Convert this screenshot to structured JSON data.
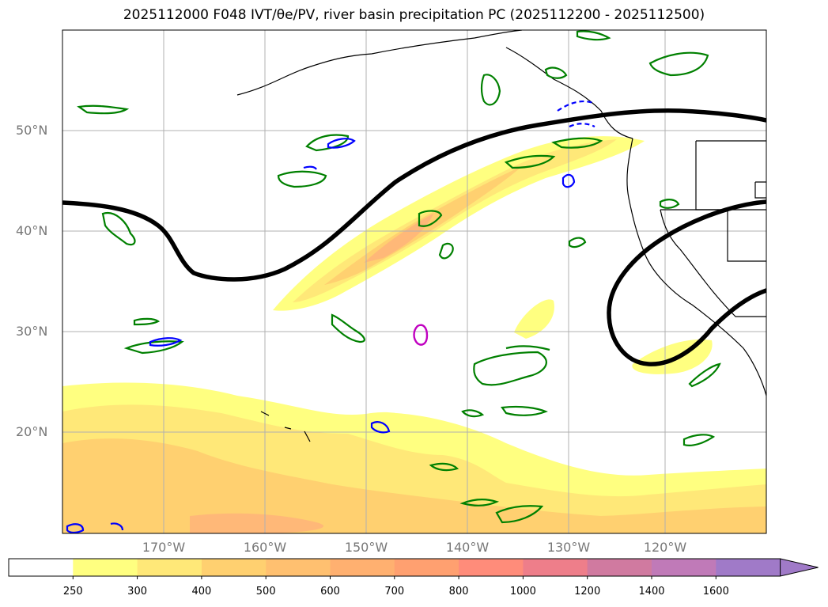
{
  "title": "2025112000 F048 IVT/θe/PV, river basin precipitation PC (2025112200 - 2025112500)",
  "latitude_labels": [
    "50°N",
    "40°N",
    "30°N",
    "20°N"
  ],
  "longitude_labels": [
    "170°W",
    "160°W",
    "150°W",
    "140°W",
    "130°W",
    "120°W"
  ],
  "colorbar": {
    "ticks": [
      "250",
      "300",
      "400",
      "500",
      "600",
      "700",
      "800",
      "1000",
      "1200",
      "1400",
      "1600"
    ],
    "colors": [
      "#ffffff",
      "#ffff80",
      "#ffe878",
      "#ffd070",
      "#ffc070",
      "#ffb070",
      "#ffa070",
      "#ff8c7a",
      "#ee7e8a",
      "#d07aa0",
      "#c07ab8",
      "#a07ac8"
    ],
    "extend": "max"
  },
  "map_colors": {
    "ivt_low": "#ffff80",
    "ivt_mid": "#ffe878",
    "ivt_high": "#ffd070",
    "ivt_higher": "#ffb878",
    "pv_contour": "#000000",
    "green_contour": "#008000",
    "blue_contour": "#0000ff",
    "magenta_contour": "#c000c0",
    "coastline": "#000000",
    "gridline": "#b0b0b0"
  }
}
